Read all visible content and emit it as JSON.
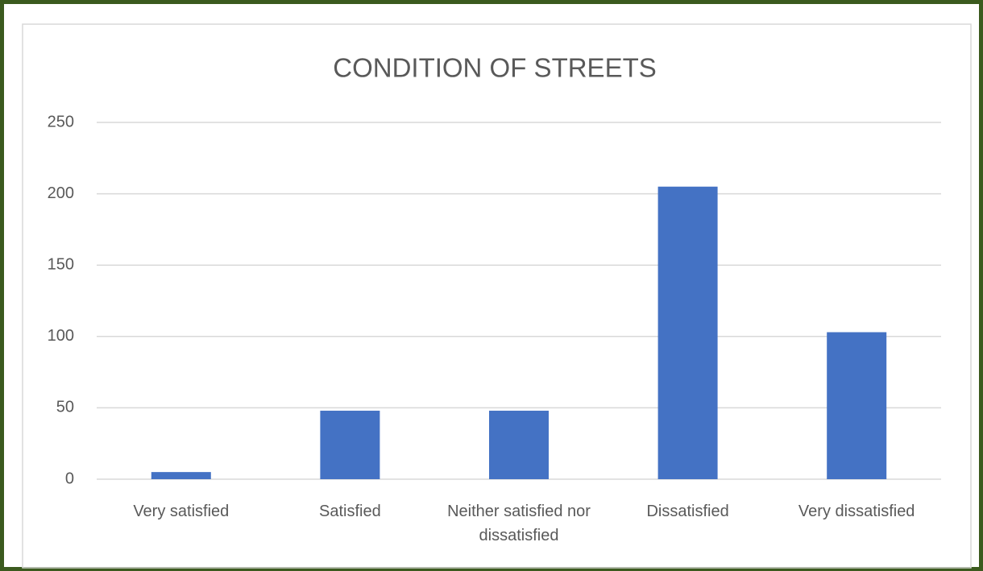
{
  "chart_data": {
    "type": "bar",
    "title": "CONDITION OF STREETS",
    "categories": [
      "Very satisfied",
      "Satisfied",
      "Neither satisfied nor dissatisfied",
      "Dissatisfied",
      "Very dissatisfied"
    ],
    "values": [
      5,
      48,
      48,
      205,
      103
    ],
    "color": "#4472c4",
    "ylim": [
      0,
      250
    ],
    "yticks": [
      0,
      50,
      100,
      150,
      200,
      250
    ],
    "grid": true
  }
}
